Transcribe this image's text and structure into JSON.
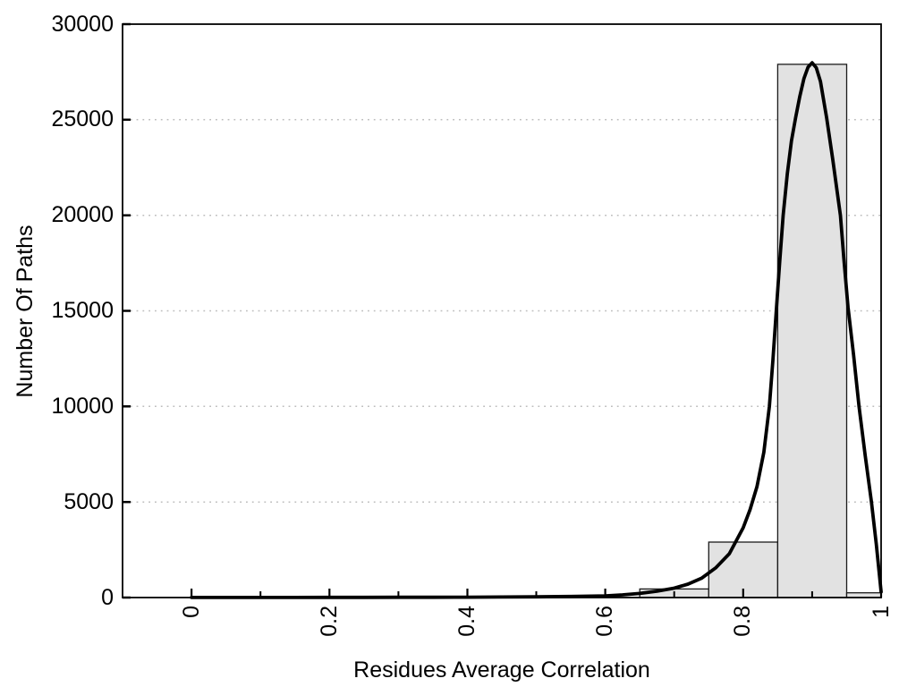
{
  "chart_data": {
    "type": "bar",
    "subtype": "histogram-with-density-curve",
    "title": "",
    "xlabel": "Residues Average Correlation",
    "ylabel": "Number Of Paths",
    "xlim": [
      -0.1,
      1.0
    ],
    "ylim": [
      0,
      30000
    ],
    "grid": "horizontal-dotted",
    "legend": "none",
    "x_major_ticks": [
      0,
      0.2,
      0.4,
      0.6,
      0.8,
      1.0
    ],
    "x_tick_labels": [
      "0",
      "0.2",
      "0.4",
      "0.6",
      "0.8",
      "1"
    ],
    "x_minor_ticks": [
      0.1,
      0.3,
      0.5,
      0.7,
      0.9
    ],
    "y_ticks": [
      0,
      5000,
      10000,
      15000,
      20000,
      25000,
      30000
    ],
    "y_tick_labels": [
      "0",
      "5000",
      "10000",
      "15000",
      "20000",
      "25000",
      "30000"
    ],
    "histogram": {
      "bin_width": 0.1,
      "bins": [
        {
          "x0": 0.65,
          "x1": 0.75,
          "count": 450
        },
        {
          "x0": 0.75,
          "x1": 0.85,
          "count": 2900
        },
        {
          "x0": 0.85,
          "x1": 0.95,
          "count": 27900
        },
        {
          "x0": 0.95,
          "x1": 1.0,
          "count": 250
        }
      ]
    },
    "curve": {
      "name": "density-fit-curve",
      "points": [
        [
          0.0,
          5
        ],
        [
          0.05,
          5
        ],
        [
          0.1,
          6
        ],
        [
          0.15,
          7
        ],
        [
          0.2,
          8
        ],
        [
          0.25,
          10
        ],
        [
          0.3,
          12
        ],
        [
          0.35,
          15
        ],
        [
          0.4,
          20
        ],
        [
          0.45,
          27
        ],
        [
          0.5,
          38
        ],
        [
          0.55,
          58
        ],
        [
          0.6,
          90
        ],
        [
          0.625,
          140
        ],
        [
          0.65,
          215
        ],
        [
          0.675,
          330
        ],
        [
          0.7,
          490
        ],
        [
          0.72,
          700
        ],
        [
          0.74,
          1020
        ],
        [
          0.76,
          1550
        ],
        [
          0.78,
          2300
        ],
        [
          0.8,
          3650
        ],
        [
          0.81,
          4600
        ],
        [
          0.82,
          5800
        ],
        [
          0.83,
          7600
        ],
        [
          0.838,
          10000
        ],
        [
          0.843,
          12400
        ],
        [
          0.848,
          15000
        ],
        [
          0.853,
          17600
        ],
        [
          0.858,
          20000
        ],
        [
          0.864,
          22200
        ],
        [
          0.87,
          23900
        ],
        [
          0.876,
          25100
        ],
        [
          0.882,
          26200
        ],
        [
          0.888,
          27150
        ],
        [
          0.894,
          27750
        ],
        [
          0.9,
          27980
        ],
        [
          0.906,
          27720
        ],
        [
          0.912,
          27000
        ],
        [
          0.921,
          25100
        ],
        [
          0.93,
          22900
        ],
        [
          0.941,
          20000
        ],
        [
          0.946,
          17700
        ],
        [
          0.952,
          15200
        ],
        [
          0.96,
          12700
        ],
        [
          0.968,
          10000
        ],
        [
          0.977,
          7400
        ],
        [
          0.986,
          5000
        ],
        [
          0.993,
          2800
        ],
        [
          1.0,
          300
        ]
      ]
    },
    "colors": {
      "background": "#ffffff",
      "bar_fill": "#e2e2e2",
      "bar_stroke": "#1a1a1a",
      "curve": "#000000",
      "grid": "#bdbdbd",
      "axis": "#000000",
      "text": "#000000"
    }
  }
}
